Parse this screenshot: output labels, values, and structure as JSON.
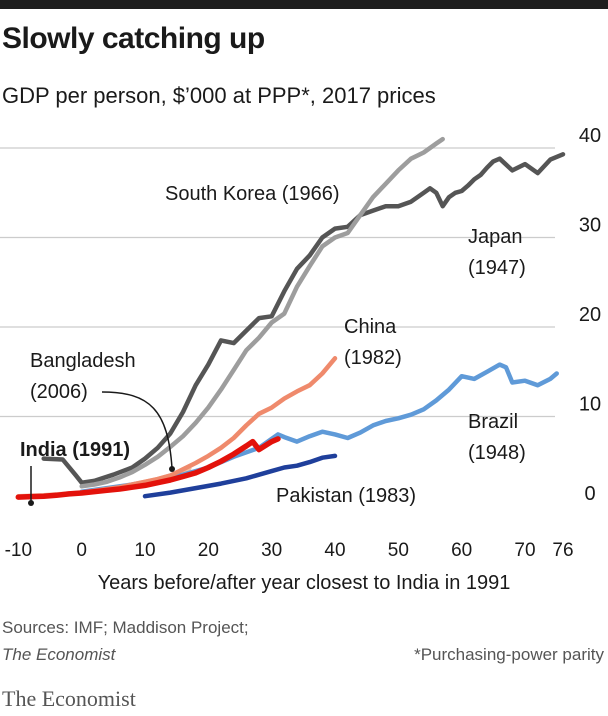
{
  "title": "Slowly catching up",
  "subtitle": "GDP per person, $’000 at PPP*, 2017 prices",
  "source_line1": "Sources: IMF; Maddison Project;",
  "source_line2": "The Economist",
  "footnote": "*Purchasing-power parity",
  "brand": "The Economist",
  "colors": {
    "background": "#ffffff",
    "grid": "#cccccc",
    "text": "#1a1a1a",
    "south_korea": "#9d9d9d",
    "japan": "#555555",
    "china": "#ef8a6c",
    "brazil": "#5f9ad8",
    "pakistan": "#1f3f9b",
    "bangladesh": "#f2c3a5",
    "india": "#e3120b"
  },
  "chart_data": {
    "type": "line",
    "title": "Slowly catching up",
    "subtitle": "GDP per person, $’000 at PPP*, 2017 prices",
    "xlabel": "Years before/after year closest to India in 1991",
    "ylabel": "",
    "xlim": [
      -11,
      77
    ],
    "ylim": [
      0,
      40
    ],
    "x_ticks": [
      -10,
      0,
      10,
      20,
      30,
      40,
      50,
      60,
      70,
      76
    ],
    "x_tick_labels": [
      "-10",
      "0",
      "10",
      "20",
      "30",
      "40",
      "50",
      "60",
      "70",
      "76"
    ],
    "y_ticks": [
      0,
      10,
      20,
      30,
      40
    ],
    "y_tick_labels": [
      "0",
      "10",
      "20",
      "30",
      "40"
    ],
    "y_axis_side": "right",
    "grid": true,
    "legend": "direct labels",
    "series": [
      {
        "name": "Japan (1947)",
        "label_lines": [
          "Japan",
          "(1947)"
        ],
        "key": "japan",
        "x": [
          -6,
          -3,
          -1,
          0,
          2,
          5,
          8,
          10,
          12,
          14,
          16,
          18,
          20,
          22,
          24,
          26,
          28,
          30,
          32,
          34,
          36,
          38,
          40,
          42,
          44,
          46,
          48,
          50,
          52,
          54,
          55,
          56,
          57,
          58,
          59,
          60,
          61,
          62,
          63,
          64,
          65,
          66,
          68,
          70,
          72,
          74,
          76
        ],
        "values": [
          5.3,
          5.2,
          3.5,
          2.6,
          2.8,
          3.5,
          4.3,
          5.3,
          6.5,
          8.1,
          10.5,
          13.5,
          15.8,
          18.5,
          18.2,
          19.6,
          21.0,
          21.2,
          24.0,
          26.5,
          28.0,
          30.0,
          31.0,
          31.2,
          32.5,
          33.0,
          33.5,
          33.5,
          34.0,
          35.0,
          35.5,
          35.0,
          33.5,
          34.5,
          35.0,
          35.2,
          35.8,
          36.5,
          37.0,
          37.8,
          38.5,
          38.8,
          37.5,
          38.2,
          37.2,
          38.7,
          39.3
        ]
      },
      {
        "name": "South Korea (1966)",
        "label_lines": [
          "South Korea (1966)"
        ],
        "key": "south_korea",
        "x": [
          0,
          2,
          4,
          6,
          8,
          10,
          12,
          14,
          16,
          18,
          20,
          22,
          24,
          26,
          28,
          30,
          32,
          34,
          36,
          38,
          40,
          42,
          44,
          46,
          48,
          50,
          52,
          54,
          56,
          57
        ],
        "values": [
          2.2,
          2.4,
          2.7,
          3.2,
          3.8,
          4.6,
          5.5,
          6.6,
          7.8,
          9.3,
          11.0,
          13.0,
          15.2,
          17.4,
          18.8,
          20.5,
          21.5,
          24.5,
          26.8,
          29.0,
          30.0,
          30.5,
          32.5,
          34.5,
          36.0,
          37.5,
          38.8,
          39.5,
          40.5,
          41.0
        ]
      },
      {
        "name": "China (1982)",
        "label_lines": [
          "China",
          "(1982)"
        ],
        "key": "china",
        "x": [
          0,
          2,
          4,
          6,
          8,
          10,
          12,
          14,
          16,
          18,
          20,
          22,
          24,
          26,
          28,
          30,
          32,
          34,
          36,
          38,
          40
        ],
        "values": [
          1.5,
          1.7,
          1.9,
          2.1,
          2.4,
          2.7,
          3.0,
          3.4,
          4.1,
          4.8,
          5.6,
          6.5,
          7.6,
          9.0,
          10.3,
          11.0,
          12.0,
          12.8,
          13.5,
          14.8,
          16.5
        ]
      },
      {
        "name": "Brazil (1948)",
        "label_lines": [
          "Brazil",
          "(1948)"
        ],
        "key": "brazil",
        "x": [
          0,
          4,
          8,
          12,
          16,
          20,
          24,
          28,
          30,
          31,
          32,
          34,
          36,
          38,
          40,
          42,
          44,
          46,
          48,
          50,
          52,
          54,
          56,
          58,
          60,
          62,
          64,
          66,
          67,
          68,
          70,
          72,
          74,
          75
        ],
        "values": [
          1.6,
          2.0,
          2.4,
          2.9,
          3.5,
          4.3,
          5.5,
          6.5,
          7.5,
          8.0,
          7.7,
          7.2,
          7.8,
          8.3,
          8.0,
          7.6,
          8.2,
          9.0,
          9.5,
          9.8,
          10.2,
          10.8,
          11.8,
          13.0,
          14.5,
          14.2,
          15.0,
          15.8,
          15.5,
          13.8,
          14.0,
          13.5,
          14.2,
          14.8
        ]
      },
      {
        "name": "Pakistan (1983)",
        "label_lines": [
          "Pakistan (1983)"
        ],
        "key": "pakistan",
        "x": [
          10,
          14,
          18,
          22,
          26,
          28,
          30,
          32,
          34,
          36,
          38,
          40
        ],
        "values": [
          1.1,
          1.5,
          2.0,
          2.5,
          3.1,
          3.5,
          3.9,
          4.3,
          4.5,
          4.9,
          5.4,
          5.6
        ]
      },
      {
        "name": "Bangladesh (2006)",
        "label_lines": [
          "Bangladesh",
          "(2006)"
        ],
        "key": "bangladesh",
        "x": [
          -10,
          -6,
          -2,
          0,
          2,
          4,
          6,
          8,
          10,
          12,
          14,
          16,
          17
        ],
        "values": [
          1.1,
          1.2,
          1.4,
          1.5,
          1.7,
          1.9,
          2.1,
          2.4,
          2.7,
          3.0,
          3.4,
          3.9,
          4.2
        ]
      },
      {
        "name": "India (1991)",
        "label_lines": [
          "India (1991)"
        ],
        "key": "india",
        "x": [
          -10,
          -8,
          -6,
          -4,
          -2,
          0,
          2,
          4,
          6,
          8,
          10,
          12,
          14,
          16,
          18,
          20,
          22,
          24,
          26,
          27,
          28,
          30,
          31
        ],
        "values": [
          1.0,
          1.05,
          1.1,
          1.2,
          1.35,
          1.45,
          1.6,
          1.75,
          1.9,
          2.1,
          2.3,
          2.6,
          2.9,
          3.3,
          3.7,
          4.3,
          5.0,
          5.8,
          6.7,
          7.2,
          6.3,
          7.2,
          7.5
        ]
      }
    ]
  }
}
